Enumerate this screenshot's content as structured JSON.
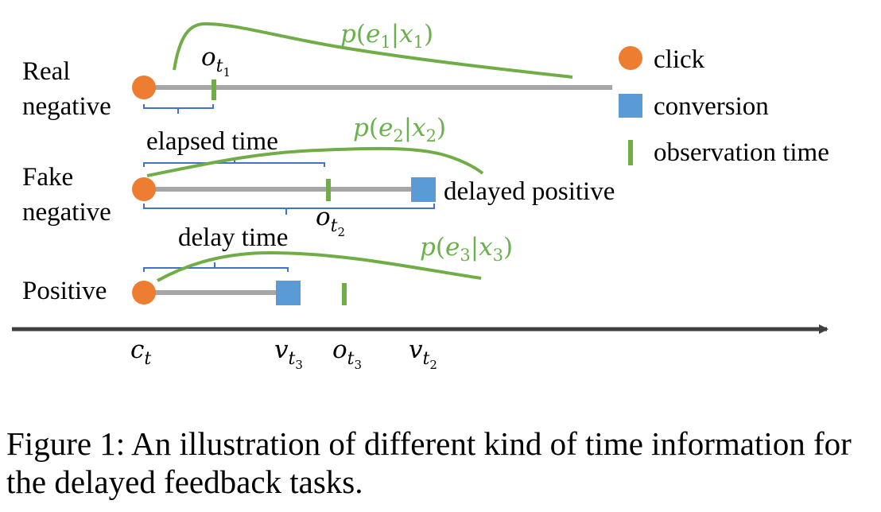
{
  "rows": {
    "real_negative": {
      "label_line1": "Real",
      "label_line2": "negative"
    },
    "fake_negative": {
      "label_line1": "Fake",
      "label_line2": "negative"
    },
    "positive": {
      "label": "Positive"
    }
  },
  "legend": {
    "click": "click",
    "conversion": "conversion",
    "observation": "observation time"
  },
  "annotations": {
    "elapsed_time": "elapsed time",
    "delay_time": "delay time",
    "delayed_positive": "delayed positive"
  },
  "curves": {
    "e1": {
      "p": "p",
      "e": "e",
      "e_sub": "1",
      "x": "x",
      "x_sub": "1"
    },
    "e2": {
      "p": "p",
      "e": "e",
      "e_sub": "2",
      "x": "x",
      "x_sub": "2"
    },
    "e3": {
      "p": "p",
      "e": "e",
      "e_sub": "3",
      "x": "x",
      "x_sub": "3"
    }
  },
  "markers": {
    "o_t1": {
      "base": "o",
      "sub": "t",
      "subsub": "1"
    },
    "o_t2": {
      "base": "o",
      "sub": "t",
      "subsub": "2"
    }
  },
  "axis_labels": {
    "c_t": {
      "base": "c",
      "sub": "t"
    },
    "v_t3": {
      "base": "v",
      "sub": "t",
      "subsub": "3"
    },
    "o_t3": {
      "base": "o",
      "sub": "t",
      "subsub": "3"
    },
    "v_t2": {
      "base": "v",
      "sub": "t",
      "subsub": "2"
    }
  },
  "colors": {
    "click": "#ed7d31",
    "conversion": "#5b9bd5",
    "observation": "#70ad47",
    "timeline": "#a6a6a6",
    "bracket": "#4472c4",
    "axis": "#404040"
  },
  "caption": "Figure 1: An illustration of different kind of time information for the delayed feedback tasks."
}
